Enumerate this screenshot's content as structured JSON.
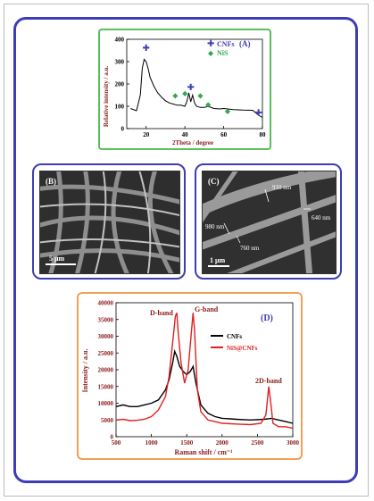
{
  "panel_a": {
    "label": "(A)",
    "ylabel": "Relative intensity / a.u.",
    "xlabel": "2Theta / degree",
    "legend": [
      "CNFs",
      "NiS"
    ],
    "x_ticks": [
      "20",
      "40",
      "60",
      "80"
    ],
    "y_ticks": [
      "0",
      "100",
      "200",
      "300",
      "400"
    ],
    "colors": {
      "curve": "#000000",
      "cnf_marker": "#3d3db8",
      "nis_marker": "#2fa84f",
      "label": "#3d3db8",
      "axis_text": "#8b1a1a"
    }
  },
  "panel_b": {
    "label": "(B)",
    "scale_bar": "5 μm"
  },
  "panel_c": {
    "label": "(C)",
    "scale_bar": "1 μm",
    "annotations": [
      "910 nm",
      "640 nm",
      "980 nm",
      "760 nm"
    ]
  },
  "panel_d": {
    "label": "(D)",
    "band_labels": {
      "d": "D-band",
      "g": "G-band",
      "two_d": "2D-band"
    },
    "colors": {
      "cnfs": "#000000",
      "nis_cnfs": "#e02020",
      "axis_text": "#8b1a1a",
      "label": "#3d3db8"
    }
  },
  "chart_data": [
    {
      "type": "line",
      "title": "",
      "xlabel": "2Theta / degree",
      "ylabel": "Relative intensity / a.u.",
      "xlim": [
        10,
        80
      ],
      "ylim": [
        0,
        400
      ],
      "series": [
        {
          "name": "",
          "x": [
            12,
            15,
            17,
            18,
            19,
            20,
            21,
            22,
            24,
            26,
            28,
            30,
            32,
            34,
            36,
            38,
            40,
            41,
            42,
            43,
            44,
            45,
            46,
            48,
            50,
            52,
            55,
            58,
            60,
            65,
            70,
            75,
            78,
            80
          ],
          "values": [
            90,
            80,
            150,
            270,
            310,
            300,
            270,
            230,
            190,
            160,
            140,
            125,
            115,
            110,
            105,
            105,
            100,
            120,
            160,
            120,
            150,
            115,
            100,
            95,
            95,
            100,
            90,
            88,
            90,
            85,
            83,
            82,
            60,
            50
          ]
        }
      ],
      "markers": [
        {
          "name": "CNFs",
          "x": [
            20,
            43,
            78
          ],
          "y": [
            360,
            185,
            70
          ]
        },
        {
          "name": "NiS",
          "x": [
            35,
            40,
            48,
            52,
            62
          ],
          "y": [
            150,
            160,
            150,
            110,
            80
          ]
        }
      ]
    },
    {
      "type": "line",
      "title": "",
      "xlabel": "Raman shift / cm⁻¹",
      "ylabel": "Intensity / a.u.",
      "xlim": [
        500,
        3000
      ],
      "ylim": [
        0,
        40000
      ],
      "x_ticks": [
        "500",
        "1000",
        "1500",
        "2000",
        "2500",
        "3000"
      ],
      "y_ticks": [
        "0",
        "5000",
        "10000",
        "15000",
        "20000",
        "25000",
        "30000",
        "35000",
        "40000"
      ],
      "series": [
        {
          "name": "CNFs",
          "x": [
            500,
            600,
            700,
            800,
            900,
            1000,
            1100,
            1200,
            1250,
            1300,
            1330,
            1360,
            1400,
            1450,
            1500,
            1550,
            1590,
            1630,
            1700,
            1800,
            1900,
            2000,
            2200,
            2400,
            2600,
            2700,
            2800,
            2900,
            3000
          ],
          "values": [
            9000,
            9500,
            9000,
            9000,
            9500,
            10000,
            11000,
            14000,
            17000,
            22000,
            25500,
            24000,
            21000,
            19500,
            18500,
            19500,
            21000,
            16000,
            9500,
            7000,
            6000,
            5500,
            5200,
            5000,
            5200,
            5500,
            5000,
            4500,
            4000
          ]
        },
        {
          "name": "NiS@CNFs",
          "x": [
            500,
            600,
            700,
            800,
            900,
            1000,
            1100,
            1200,
            1250,
            1300,
            1340,
            1360,
            1380,
            1420,
            1470,
            1520,
            1560,
            1590,
            1610,
            1650,
            1700,
            1800,
            1900,
            2000,
            2200,
            2400,
            2550,
            2620,
            2660,
            2690,
            2720,
            2800,
            2900,
            3000
          ],
          "values": [
            5000,
            5200,
            4800,
            4900,
            5200,
            6000,
            8000,
            12000,
            18000,
            28000,
            36000,
            37000,
            31000,
            22000,
            16000,
            20000,
            30000,
            37000,
            32000,
            14000,
            7500,
            5000,
            4500,
            4000,
            3800,
            3600,
            4000,
            6500,
            15000,
            10000,
            4000,
            3000,
            3000,
            2500
          ]
        }
      ]
    }
  ]
}
